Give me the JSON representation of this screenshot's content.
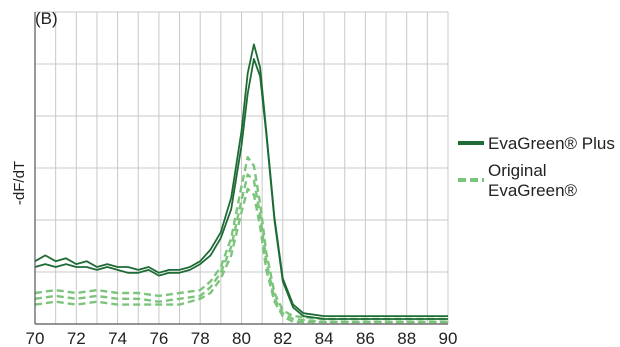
{
  "chart_data": {
    "type": "line",
    "panel_label": "(B)",
    "xlabel": "",
    "ylabel": "-dF/dT",
    "xlim": [
      70,
      90
    ],
    "ylim": [
      0,
      1.0
    ],
    "x_ticks": [
      "70",
      "72",
      "74",
      "76",
      "78",
      "80",
      "82",
      "84",
      "86",
      "88",
      "90"
    ],
    "grid": true,
    "legend_position": "right",
    "series": [
      {
        "name": "EvaGreen® Plus",
        "color": "#1e6b35",
        "style": "solid",
        "curves": [
          [
            [
              70,
              0.2
            ],
            [
              70.5,
              0.22
            ],
            [
              71,
              0.2
            ],
            [
              71.5,
              0.21
            ],
            [
              72,
              0.19
            ],
            [
              72.5,
              0.2
            ],
            [
              73,
              0.18
            ],
            [
              73.5,
              0.19
            ],
            [
              74,
              0.18
            ],
            [
              74.5,
              0.18
            ],
            [
              75,
              0.17
            ],
            [
              75.5,
              0.18
            ],
            [
              76,
              0.16
            ],
            [
              76.5,
              0.17
            ],
            [
              77,
              0.17
            ],
            [
              77.5,
              0.18
            ],
            [
              78,
              0.2
            ],
            [
              78.5,
              0.24
            ],
            [
              79,
              0.3
            ],
            [
              79.5,
              0.42
            ],
            [
              80,
              0.65
            ],
            [
              80.3,
              0.85
            ],
            [
              80.6,
              0.95
            ],
            [
              80.9,
              0.87
            ],
            [
              81.2,
              0.65
            ],
            [
              81.6,
              0.35
            ],
            [
              82,
              0.14
            ],
            [
              82.5,
              0.05
            ],
            [
              83,
              0.02
            ],
            [
              84,
              0.01
            ],
            [
              86,
              0.01
            ],
            [
              88,
              0.01
            ],
            [
              90,
              0.01
            ]
          ],
          [
            [
              70,
              0.18
            ],
            [
              70.5,
              0.19
            ],
            [
              71,
              0.18
            ],
            [
              71.5,
              0.19
            ],
            [
              72,
              0.18
            ],
            [
              72.5,
              0.18
            ],
            [
              73,
              0.17
            ],
            [
              73.5,
              0.18
            ],
            [
              74,
              0.17
            ],
            [
              74.5,
              0.16
            ],
            [
              75,
              0.16
            ],
            [
              75.5,
              0.17
            ],
            [
              76,
              0.15
            ],
            [
              76.5,
              0.16
            ],
            [
              77,
              0.16
            ],
            [
              77.5,
              0.17
            ],
            [
              78,
              0.19
            ],
            [
              78.5,
              0.22
            ],
            [
              79,
              0.28
            ],
            [
              79.5,
              0.38
            ],
            [
              80,
              0.6
            ],
            [
              80.3,
              0.78
            ],
            [
              80.6,
              0.9
            ],
            [
              80.9,
              0.84
            ],
            [
              81.2,
              0.64
            ],
            [
              81.6,
              0.34
            ],
            [
              82,
              0.13
            ],
            [
              82.5,
              0.04
            ],
            [
              83,
              0.01
            ],
            [
              84,
              0.0
            ],
            [
              86,
              0.0
            ],
            [
              88,
              0.0
            ],
            [
              90,
              0.0
            ]
          ]
        ]
      },
      {
        "name": "Original EvaGreen®",
        "color": "#7cc47c",
        "style": "dashed",
        "curves": [
          [
            [
              70,
              0.09
            ],
            [
              71,
              0.1
            ],
            [
              72,
              0.09
            ],
            [
              73,
              0.1
            ],
            [
              74,
              0.09
            ],
            [
              75,
              0.09
            ],
            [
              76,
              0.08
            ],
            [
              77,
              0.09
            ],
            [
              78,
              0.1
            ],
            [
              78.5,
              0.13
            ],
            [
              79,
              0.18
            ],
            [
              79.5,
              0.28
            ],
            [
              80,
              0.46
            ],
            [
              80.3,
              0.56
            ],
            [
              80.6,
              0.53
            ],
            [
              80.9,
              0.4
            ],
            [
              81.2,
              0.23
            ],
            [
              81.6,
              0.09
            ],
            [
              82,
              0.03
            ],
            [
              82.5,
              0.01
            ],
            [
              84,
              0.0
            ],
            [
              86,
              0.0
            ],
            [
              88,
              0.0
            ],
            [
              90,
              0.0
            ]
          ],
          [
            [
              70,
              0.07
            ],
            [
              71,
              0.08
            ],
            [
              72,
              0.07
            ],
            [
              73,
              0.08
            ],
            [
              74,
              0.07
            ],
            [
              75,
              0.07
            ],
            [
              76,
              0.06
            ],
            [
              77,
              0.07
            ],
            [
              78,
              0.08
            ],
            [
              78.5,
              0.11
            ],
            [
              79,
              0.16
            ],
            [
              79.5,
              0.25
            ],
            [
              80,
              0.41
            ],
            [
              80.3,
              0.5
            ],
            [
              80.6,
              0.48
            ],
            [
              80.9,
              0.36
            ],
            [
              81.2,
              0.2
            ],
            [
              81.6,
              0.07
            ],
            [
              82,
              0.02
            ],
            [
              82.5,
              0.0
            ],
            [
              84,
              -0.01
            ],
            [
              86,
              -0.01
            ],
            [
              88,
              -0.01
            ],
            [
              90,
              -0.01
            ]
          ],
          [
            [
              70,
              0.05
            ],
            [
              71,
              0.06
            ],
            [
              72,
              0.05
            ],
            [
              73,
              0.06
            ],
            [
              74,
              0.05
            ],
            [
              75,
              0.05
            ],
            [
              76,
              0.05
            ],
            [
              77,
              0.05
            ],
            [
              78,
              0.07
            ],
            [
              78.5,
              0.09
            ],
            [
              79,
              0.14
            ],
            [
              79.5,
              0.22
            ],
            [
              80,
              0.37
            ],
            [
              80.3,
              0.45
            ],
            [
              80.6,
              0.43
            ],
            [
              80.9,
              0.32
            ],
            [
              81.2,
              0.17
            ],
            [
              81.6,
              0.06
            ],
            [
              82,
              0.01
            ],
            [
              82.5,
              -0.01
            ],
            [
              84,
              -0.01
            ],
            [
              86,
              -0.01
            ],
            [
              88,
              -0.01
            ],
            [
              90,
              -0.01
            ]
          ]
        ]
      }
    ],
    "legend": [
      {
        "label_lines": [
          "EvaGreen® Plus"
        ],
        "color": "#1e6b35",
        "style": "solid"
      },
      {
        "label_lines": [
          "Original",
          "EvaGreen®"
        ],
        "color": "#7cc47c",
        "style": "dashed"
      }
    ]
  }
}
